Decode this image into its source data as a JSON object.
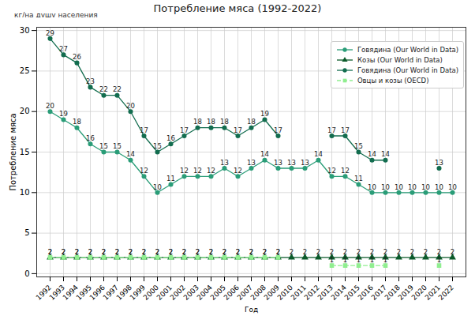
{
  "chart_data": {
    "type": "line",
    "title": "Потребление мяса (1992-2022)",
    "subtitle": "кг/на душу населения",
    "x_label": "Год",
    "y_label": "Потребление мяса",
    "categories": [
      "1992",
      "1993",
      "1994",
      "1995",
      "1996",
      "1997",
      "1998",
      "1999",
      "2000",
      "2001",
      "2002",
      "2003",
      "2004",
      "2005",
      "2006",
      "2007",
      "2008",
      "2009",
      "2010",
      "2011",
      "2012",
      "2013",
      "2014",
      "2015",
      "2016",
      "2017",
      "2018",
      "2019",
      "2020",
      "2021",
      "2022"
    ],
    "series": [
      {
        "name": "Говядина (Our World in Data)",
        "color": "#2a9d78",
        "marker": "circle",
        "line_style": "solid",
        "values": [
          20,
          19,
          18,
          16,
          15,
          15,
          14,
          12,
          10,
          11,
          12,
          12,
          12,
          13,
          12,
          13,
          14,
          13,
          13,
          13,
          14,
          12,
          12,
          11,
          10,
          10,
          10,
          10,
          10,
          10,
          10
        ]
      },
      {
        "name": "Козы (Our World in Data)",
        "color": "#0b5a2a",
        "marker": "triangle",
        "line_style": "solid",
        "values": [
          2,
          2,
          2,
          2,
          2,
          2,
          2,
          2,
          2,
          2,
          2,
          2,
          2,
          2,
          2,
          2,
          2,
          2,
          2,
          2,
          2,
          2,
          2,
          2,
          2,
          2,
          2,
          2,
          2,
          2,
          2
        ]
      },
      {
        "name": "Говядина (Our World in Data)",
        "color": "#136d4f",
        "marker": "circle",
        "line_style": "solid",
        "values": [
          29,
          27,
          26,
          23,
          22,
          22,
          20,
          17,
          15,
          16,
          17,
          18,
          18,
          18,
          17,
          18,
          19,
          17,
          null,
          null,
          null,
          17,
          17,
          15,
          14,
          14,
          null,
          null,
          null,
          13,
          null
        ]
      },
      {
        "name": "Овцы и козы (OECD)",
        "color": "#90ee90",
        "marker": "square",
        "line_style": "dashed",
        "values": [
          2,
          2,
          2,
          2,
          2,
          2,
          2,
          2,
          2,
          2,
          2,
          2,
          2,
          2,
          2,
          2,
          2,
          2,
          null,
          null,
          null,
          1,
          1,
          1,
          1,
          1,
          null,
          null,
          null,
          1,
          null
        ]
      }
    ],
    "ylim": [
      -0.4,
      30.4
    ],
    "yticks": [
      0,
      5,
      10,
      15,
      20,
      25,
      30
    ],
    "grid": true,
    "legend": "upper right",
    "data_labels": true
  }
}
